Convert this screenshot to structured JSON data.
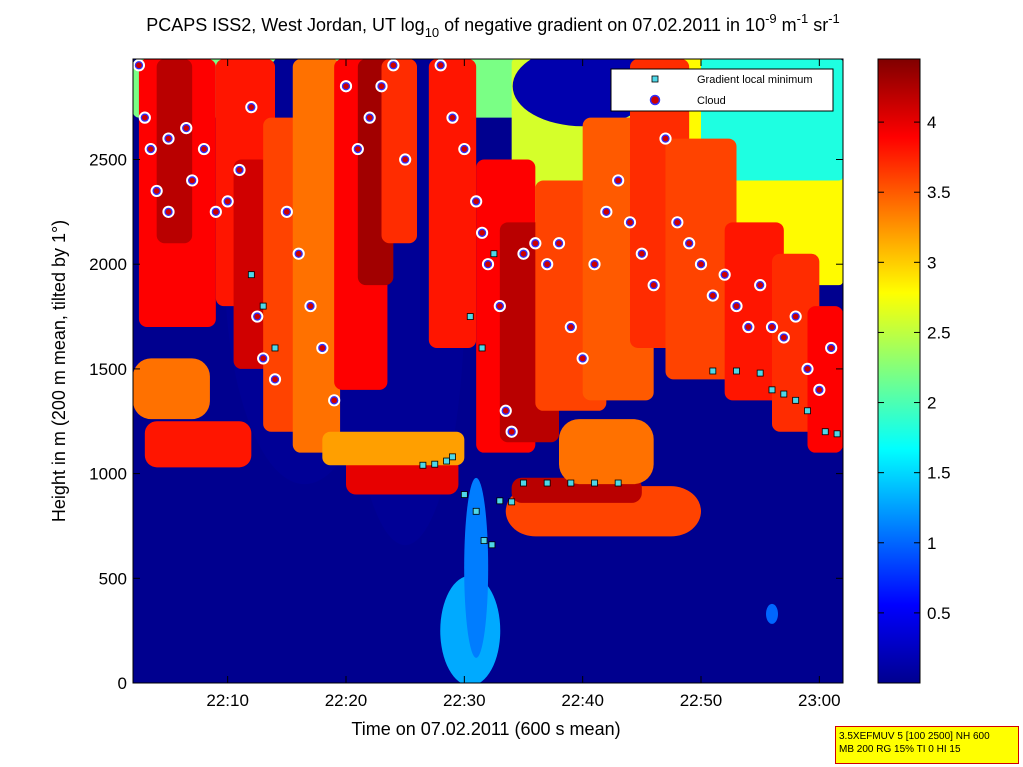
{
  "chart_data": {
    "type": "heatmap",
    "title": {
      "part1": "PCAPS ISS2, West Jordan, UT log",
      "sub": "10",
      "part2": " of negative gradient on 07.02.2011 in 10",
      "sup1": "-9",
      "part3": " m",
      "sup2": "-1",
      "part4": " sr",
      "sup3": "-1"
    },
    "xlabel": "Time on 07.02.2011 (600 s mean)",
    "ylabel": "Height in m (200 m mean, tilted by 1°)",
    "xlim": [
      "22:02",
      "23:02"
    ],
    "ylim": [
      0,
      2980
    ],
    "x_ticks": [
      "22:10",
      "22:20",
      "22:30",
      "22:40",
      "22:50",
      "23:00"
    ],
    "y_ticks": [
      0,
      500,
      1000,
      1500,
      2000,
      2500
    ],
    "colorbar": {
      "colormap": "jet",
      "range": [
        0,
        4.45
      ],
      "ticks": [
        0.5,
        1,
        1.5,
        2,
        2.5,
        3,
        3.5,
        4
      ]
    },
    "colors": {
      "background_low": "#00008f",
      "gradient_marker": "#4fd8e8",
      "cloud_marker_fill": "#cc0000",
      "cloud_marker_edge": "#3030ff"
    },
    "legend": {
      "position": "top-right",
      "items": [
        {
          "label": "Gradient local minimum",
          "marker": "square"
        },
        {
          "label": "Cloud",
          "marker": "circle"
        }
      ]
    },
    "series": [
      {
        "name": "Gradient local minimum",
        "points": [
          [
            "22:26:30",
            1040
          ],
          [
            "22:27:30",
            1045
          ],
          [
            "22:28:30",
            1060
          ],
          [
            "22:29:00",
            1080
          ],
          [
            "22:30:00",
            900
          ],
          [
            "22:31:00",
            820
          ],
          [
            "22:31:40",
            680
          ],
          [
            "22:32:20",
            660
          ],
          [
            "22:33:00",
            870
          ],
          [
            "22:34:00",
            865
          ],
          [
            "22:35:00",
            955
          ],
          [
            "22:37:00",
            955
          ],
          [
            "22:39:00",
            955
          ],
          [
            "22:41:00",
            955
          ],
          [
            "22:43:00",
            955
          ],
          [
            "22:12:00",
            1950
          ],
          [
            "22:13:00",
            1800
          ],
          [
            "22:14:00",
            1600
          ],
          [
            "22:30:30",
            1750
          ],
          [
            "22:31:30",
            1600
          ],
          [
            "22:32:30",
            2050
          ],
          [
            "22:51:00",
            1490
          ],
          [
            "22:53:00",
            1490
          ],
          [
            "22:55:00",
            1480
          ],
          [
            "22:56:00",
            1400
          ],
          [
            "22:57:00",
            1380
          ],
          [
            "22:58:00",
            1350
          ],
          [
            "22:59:00",
            1300
          ],
          [
            "23:00:30",
            1200
          ],
          [
            "23:01:30",
            1190
          ]
        ]
      },
      {
        "name": "Cloud",
        "points": [
          [
            "22:02:30",
            2950
          ],
          [
            "22:03:00",
            2700
          ],
          [
            "22:03:30",
            2550
          ],
          [
            "22:04:00",
            2350
          ],
          [
            "22:05:00",
            2250
          ],
          [
            "22:05:00",
            2600
          ],
          [
            "22:06:30",
            2650
          ],
          [
            "22:07:00",
            2400
          ],
          [
            "22:08:00",
            2550
          ],
          [
            "22:09:00",
            2250
          ],
          [
            "22:10:00",
            2300
          ],
          [
            "22:11:00",
            2450
          ],
          [
            "22:12:00",
            2750
          ],
          [
            "22:12:30",
            1750
          ],
          [
            "22:13:00",
            1550
          ],
          [
            "22:14:00",
            1450
          ],
          [
            "22:15:00",
            2250
          ],
          [
            "22:16:00",
            2050
          ],
          [
            "22:17:00",
            1800
          ],
          [
            "22:18:00",
            1600
          ],
          [
            "22:19:00",
            1350
          ],
          [
            "22:20:00",
            2850
          ],
          [
            "22:21:00",
            2550
          ],
          [
            "22:22:00",
            2700
          ],
          [
            "22:23:00",
            2850
          ],
          [
            "22:24:00",
            2950
          ],
          [
            "22:25:00",
            2500
          ],
          [
            "22:28:00",
            2950
          ],
          [
            "22:29:00",
            2700
          ],
          [
            "22:30:00",
            2550
          ],
          [
            "22:31:00",
            2300
          ],
          [
            "22:31:30",
            2150
          ],
          [
            "22:32:00",
            2000
          ],
          [
            "22:33:00",
            1800
          ],
          [
            "22:33:30",
            1300
          ],
          [
            "22:34:00",
            1200
          ],
          [
            "22:35:00",
            2050
          ],
          [
            "22:36:00",
            2100
          ],
          [
            "22:37:00",
            2000
          ],
          [
            "22:38:00",
            2100
          ],
          [
            "22:39:00",
            1700
          ],
          [
            "22:40:00",
            1550
          ],
          [
            "22:41:00",
            2000
          ],
          [
            "22:42:00",
            2250
          ],
          [
            "22:43:00",
            2400
          ],
          [
            "22:44:00",
            2200
          ],
          [
            "22:45:00",
            2050
          ],
          [
            "22:46:00",
            1900
          ],
          [
            "22:47:00",
            2600
          ],
          [
            "22:48:00",
            2200
          ],
          [
            "22:49:00",
            2100
          ],
          [
            "22:50:00",
            2000
          ],
          [
            "22:51:00",
            1850
          ],
          [
            "22:52:00",
            1950
          ],
          [
            "22:53:00",
            1800
          ],
          [
            "22:54:00",
            1700
          ],
          [
            "22:55:00",
            1900
          ],
          [
            "22:56:00",
            1700
          ],
          [
            "22:57:00",
            1650
          ],
          [
            "22:58:00",
            1750
          ],
          [
            "22:59:00",
            1500
          ],
          [
            "23:00:00",
            1400
          ],
          [
            "23:01:00",
            1600
          ]
        ]
      }
    ]
  },
  "stamp": {
    "line1": "3.5XEFMUV 5 [100 2500] NH 600",
    "line2": "MB 200 RG 15% TI 0 HI 15"
  }
}
